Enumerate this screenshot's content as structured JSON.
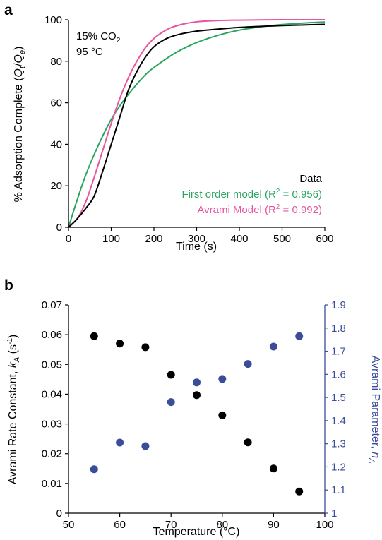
{
  "chart_data": [
    {
      "panel_label": "a",
      "type": "line",
      "xlabel": "Time (s)",
      "ylabel": {
        "prefix": "% Adsorption Complete (",
        "q1": "Q",
        "s1": "t",
        "slash": "/",
        "q2": "Q",
        "s2": "e",
        "suffix": ")"
      },
      "xlim": [
        0,
        600
      ],
      "ylim": [
        0,
        100
      ],
      "xticks": [
        "0",
        "100",
        "200",
        "300",
        "400",
        "500",
        "600"
      ],
      "yticks": [
        "0",
        "20",
        "40",
        "60",
        "80",
        "100"
      ],
      "conditions": {
        "line1_prefix": "15% CO",
        "line1_sub": "2",
        "line2": "95 °C"
      },
      "legend_placement": "bottom-right",
      "series": [
        {
          "name": "Data",
          "color": "#000000",
          "x": [
            0,
            20,
            40,
            60,
            80,
            100,
            120,
            140,
            160,
            180,
            200,
            230,
            260,
            300,
            350,
            400,
            450,
            500,
            550,
            600
          ],
          "y": [
            0,
            4,
            9,
            15,
            27,
            40,
            53,
            66,
            75,
            82,
            87,
            91,
            93,
            94.5,
            95.5,
            96.3,
            96.8,
            97.2,
            97.5,
            97.8
          ]
        },
        {
          "name": {
            "text": "First order model (R",
            "sup": "2",
            "rest": " = 0.956)"
          },
          "color": "#2aa55f",
          "x": [
            0,
            20,
            40,
            60,
            80,
            100,
            120,
            140,
            160,
            180,
            200,
            250,
            300,
            350,
            400,
            450,
            500,
            550,
            600
          ],
          "y": [
            0,
            13,
            25,
            35,
            44,
            52,
            58.5,
            64,
            69,
            73.5,
            77,
            84,
            89,
            92.5,
            95,
            96.6,
            97.7,
            98.4,
            98.9
          ]
        },
        {
          "name": {
            "text": "Avrami Model (R",
            "sup": "2",
            "rest": " = 0.992)"
          },
          "color": "#e8559f",
          "x": [
            0,
            20,
            40,
            60,
            80,
            100,
            120,
            140,
            160,
            180,
            200,
            220,
            240,
            270,
            300,
            350,
            400,
            500,
            600
          ],
          "y": [
            0,
            4,
            12,
            24,
            37,
            50,
            62,
            72,
            80,
            86.5,
            91,
            94,
            96.2,
            98,
            99,
            99.6,
            99.8,
            100,
            100
          ]
        }
      ]
    },
    {
      "panel_label": "b",
      "type": "scatter",
      "xlabel": "Temperature (°C)",
      "ylabel_left": {
        "prefix": "Avrami Rate Constant, ",
        "k": "k",
        "ksub": "A",
        "mid": " (s",
        "sup": "-1",
        "suffix": ")"
      },
      "ylabel_right": {
        "prefix": "Avrami Parameter, ",
        "n": "n",
        "nsub": "A"
      },
      "xlim": [
        50,
        100
      ],
      "ylim_left": [
        0,
        0.07
      ],
      "ylim_right": [
        1,
        1.9
      ],
      "xticks": [
        "50",
        "60",
        "70",
        "80",
        "90",
        "100"
      ],
      "yticks_left": [
        "0",
        "0.01",
        "0.02",
        "0.03",
        "0.04",
        "0.05",
        "0.06",
        "0.07"
      ],
      "yticks_right": [
        "1",
        "1.1",
        "1.2",
        "1.3",
        "1.4",
        "1.5",
        "1.6",
        "1.7",
        "1.8",
        "1.9"
      ],
      "series": [
        {
          "axis": "left",
          "color": "#000000",
          "x": [
            55,
            60,
            65,
            70,
            75,
            80,
            85,
            90,
            95
          ],
          "y": [
            0.0595,
            0.057,
            0.0558,
            0.0465,
            0.0397,
            0.0329,
            0.0238,
            0.015,
            0.0073
          ]
        },
        {
          "axis": "right",
          "color": "#3b4c9a",
          "x": [
            55,
            60,
            65,
            70,
            75,
            80,
            85,
            90,
            95
          ],
          "y": [
            1.19,
            1.305,
            1.29,
            1.48,
            1.565,
            1.58,
            1.645,
            1.72,
            1.765
          ]
        }
      ]
    }
  ]
}
